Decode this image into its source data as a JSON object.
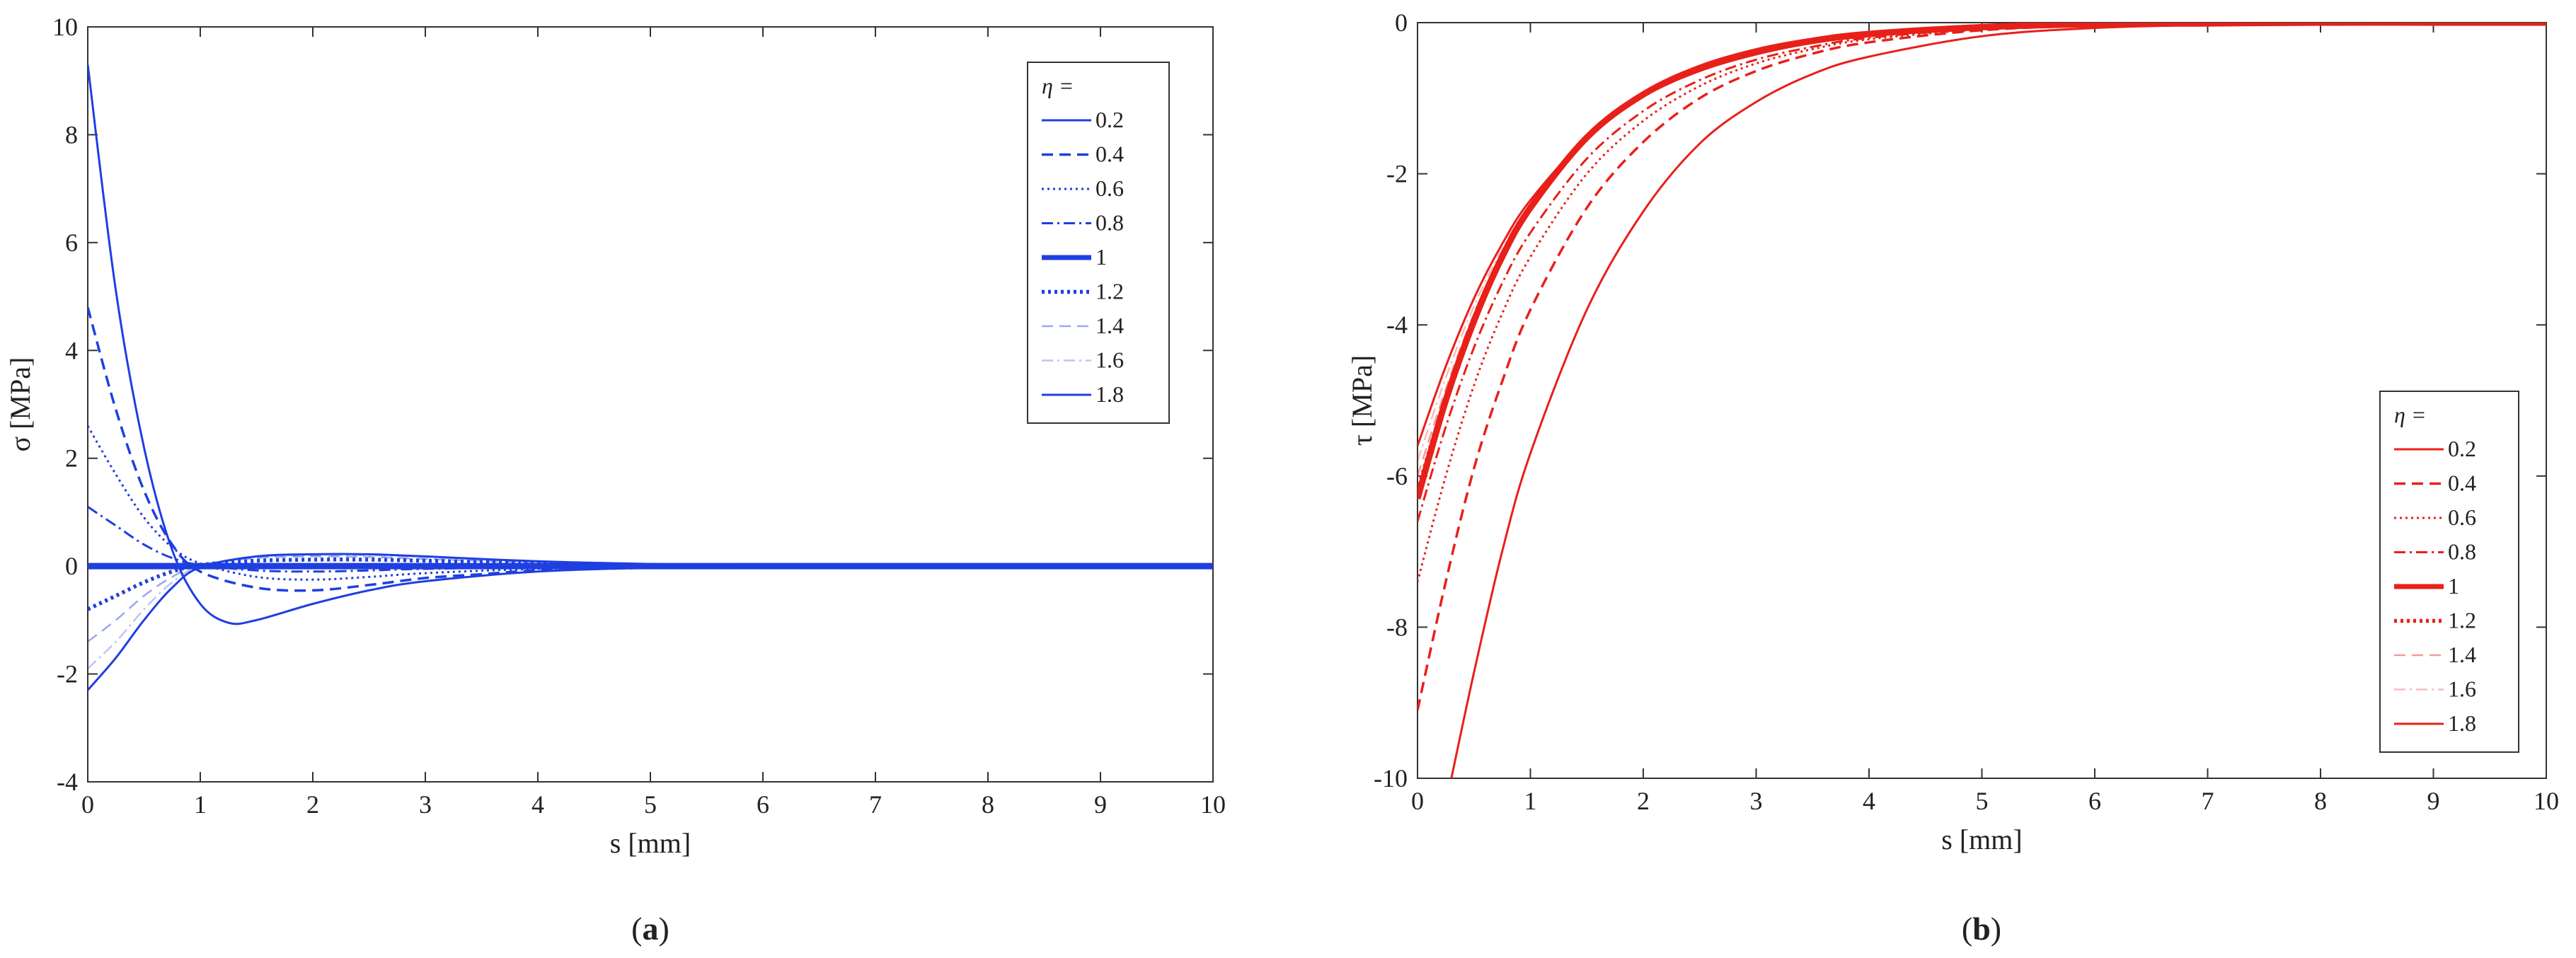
{
  "chart_data": [
    {
      "panel_label": "a",
      "type": "line",
      "xlabel": "s [mm]",
      "ylabel": "σ [MPa]",
      "xlim": [
        0,
        10
      ],
      "ylim": [
        -4,
        10
      ],
      "xticks": [
        "0",
        "1",
        "2",
        "3",
        "4",
        "5",
        "6",
        "7",
        "8",
        "9",
        "10"
      ],
      "yticks": [
        "-4",
        "-2",
        "0",
        "2",
        "4",
        "6",
        "8",
        "10"
      ],
      "grid": false,
      "legend_position": "top-right",
      "legend_title": "η =",
      "color": "#1f3fe0",
      "series": [
        {
          "name": "0.2",
          "x": [
            0,
            0.25,
            0.5,
            0.75,
            1,
            1.25,
            1.5,
            2,
            2.5,
            3,
            4,
            5,
            6,
            7,
            8,
            9,
            10
          ],
          "y": [
            9.3,
            5.1,
            2.2,
            0.3,
            -0.7,
            -1.05,
            -1.0,
            -0.7,
            -0.45,
            -0.28,
            -0.1,
            -0.03,
            0,
            0,
            0,
            0,
            0
          ]
        },
        {
          "name": "0.4",
          "x": [
            0,
            0.25,
            0.5,
            0.75,
            1,
            1.5,
            2,
            2.5,
            3,
            3.5,
            4,
            5,
            6,
            7,
            8,
            9,
            10
          ],
          "y": [
            4.8,
            2.9,
            1.4,
            0.4,
            -0.1,
            -0.4,
            -0.45,
            -0.35,
            -0.22,
            -0.15,
            -0.08,
            -0.03,
            0,
            0,
            0,
            0,
            0
          ]
        },
        {
          "name": "0.6",
          "x": [
            0,
            0.25,
            0.5,
            0.75,
            1,
            1.5,
            2,
            2.5,
            3,
            4,
            5,
            6,
            7,
            8,
            9,
            10
          ],
          "y": [
            2.6,
            1.7,
            0.9,
            0.35,
            0.05,
            -0.2,
            -0.25,
            -0.2,
            -0.13,
            -0.05,
            -0.02,
            0,
            0,
            0,
            0,
            0
          ]
        },
        {
          "name": "0.8",
          "x": [
            0,
            0.25,
            0.5,
            0.75,
            1,
            1.5,
            2,
            2.5,
            3,
            4,
            5,
            6,
            7,
            8,
            9,
            10
          ],
          "y": [
            1.1,
            0.75,
            0.4,
            0.15,
            0.02,
            -0.08,
            -0.1,
            -0.08,
            -0.05,
            -0.02,
            0,
            0,
            0,
            0,
            0,
            0
          ]
        },
        {
          "name": "1",
          "x": [
            0,
            1,
            2,
            3,
            4,
            5,
            6,
            7,
            8,
            9,
            10
          ],
          "y": [
            0,
            0,
            0,
            0,
            0,
            0,
            0,
            0,
            0,
            0,
            0
          ]
        },
        {
          "name": "1.2",
          "x": [
            0,
            0.25,
            0.5,
            0.75,
            1,
            1.5,
            2,
            2.5,
            3,
            4,
            5,
            6,
            7,
            8,
            9,
            10
          ],
          "y": [
            -0.8,
            -0.55,
            -0.3,
            -0.1,
            0.02,
            0.1,
            0.12,
            0.12,
            0.1,
            0.05,
            0.02,
            0,
            0,
            0,
            0,
            0
          ]
        },
        {
          "name": "1.4",
          "x": [
            0,
            0.25,
            0.5,
            0.75,
            1,
            1.5,
            2,
            2.5,
            3,
            4,
            5,
            6,
            7,
            8,
            9,
            10
          ],
          "y": [
            -1.4,
            -1.0,
            -0.55,
            -0.2,
            0.02,
            0.15,
            0.18,
            0.17,
            0.13,
            0.07,
            0.03,
            0,
            0,
            0,
            0,
            0
          ]
        },
        {
          "name": "1.6",
          "x": [
            0,
            0.25,
            0.5,
            0.75,
            1,
            1.5,
            2,
            2.5,
            3,
            4,
            5,
            6,
            7,
            8,
            9,
            10
          ],
          "y": [
            -1.9,
            -1.4,
            -0.8,
            -0.3,
            0.0,
            0.17,
            0.2,
            0.2,
            0.16,
            0.08,
            0.03,
            0,
            0,
            0,
            0,
            0
          ]
        },
        {
          "name": "1.8",
          "x": [
            0,
            0.25,
            0.5,
            0.75,
            1,
            1.5,
            2,
            2.5,
            3,
            4,
            5,
            6,
            7,
            8,
            9,
            10
          ],
          "y": [
            -2.3,
            -1.7,
            -1.0,
            -0.4,
            -0.02,
            0.18,
            0.22,
            0.22,
            0.18,
            0.09,
            0.04,
            0,
            0,
            0,
            0,
            0
          ]
        }
      ]
    },
    {
      "panel_label": "b",
      "type": "line",
      "xlabel": "s [mm]",
      "ylabel": "τ [MPa]",
      "xlim": [
        0,
        10
      ],
      "ylim": [
        -10,
        0
      ],
      "xticks": [
        "0",
        "1",
        "2",
        "3",
        "4",
        "5",
        "6",
        "7",
        "8",
        "9",
        "10"
      ],
      "yticks": [
        "-10",
        "-8",
        "-6",
        "-4",
        "-2",
        "0"
      ],
      "grid": false,
      "legend_position": "bottom-right",
      "legend_title": "η =",
      "color": "#e8201a",
      "series": [
        {
          "name": "0.2",
          "x": [
            0.3,
            0.5,
            0.75,
            1,
            1.5,
            2,
            2.5,
            3,
            3.5,
            4,
            5,
            6,
            7,
            8,
            9,
            10
          ],
          "y": [
            -10.0,
            -8.6,
            -7.0,
            -5.7,
            -3.8,
            -2.5,
            -1.6,
            -1.05,
            -0.68,
            -0.45,
            -0.18,
            -0.07,
            -0.03,
            -0.01,
            0,
            0
          ]
        },
        {
          "name": "0.4",
          "x": [
            0,
            0.25,
            0.5,
            0.75,
            1,
            1.5,
            2,
            2.5,
            3,
            3.5,
            4,
            5,
            6,
            7,
            8,
            9,
            10
          ],
          "y": [
            -9.1,
            -7.4,
            -5.9,
            -4.75,
            -3.8,
            -2.45,
            -1.58,
            -1.0,
            -0.64,
            -0.41,
            -0.26,
            -0.1,
            -0.04,
            -0.02,
            0,
            0,
            0
          ]
        },
        {
          "name": "0.6",
          "x": [
            0,
            0.25,
            0.5,
            0.75,
            1,
            1.5,
            2,
            2.5,
            3,
            3.5,
            4,
            5,
            6,
            7,
            8,
            9,
            10
          ],
          "y": [
            -7.4,
            -6.0,
            -4.8,
            -3.85,
            -3.1,
            -2.0,
            -1.3,
            -0.84,
            -0.54,
            -0.35,
            -0.22,
            -0.09,
            -0.04,
            -0.01,
            0,
            0,
            0
          ]
        },
        {
          "name": "0.8",
          "x": [
            0,
            0.25,
            0.5,
            0.75,
            1,
            1.5,
            2,
            2.5,
            3,
            3.5,
            4,
            5,
            6,
            7,
            8,
            9,
            10
          ],
          "y": [
            -6.6,
            -5.35,
            -4.3,
            -3.45,
            -2.78,
            -1.8,
            -1.17,
            -0.76,
            -0.49,
            -0.32,
            -0.2,
            -0.08,
            -0.03,
            -0.01,
            0,
            0,
            0
          ]
        },
        {
          "name": "1",
          "x": [
            0,
            0.25,
            0.5,
            0.75,
            1,
            1.5,
            2,
            2.5,
            3,
            3.5,
            4,
            5,
            6,
            7,
            8,
            9,
            10
          ],
          "y": [
            -6.3,
            -5.0,
            -3.95,
            -3.1,
            -2.45,
            -1.52,
            -0.95,
            -0.6,
            -0.38,
            -0.24,
            -0.15,
            -0.06,
            -0.02,
            -0.01,
            0,
            0,
            0
          ]
        },
        {
          "name": "1.2",
          "x": [
            0,
            0.25,
            0.5,
            0.75,
            1,
            1.5,
            2,
            2.5,
            3,
            3.5,
            4,
            5,
            6,
            7,
            8,
            9,
            10
          ],
          "y": [
            -6.2,
            -4.95,
            -3.9,
            -3.07,
            -2.42,
            -1.5,
            -0.94,
            -0.59,
            -0.37,
            -0.23,
            -0.14,
            -0.05,
            -0.02,
            -0.01,
            0,
            0,
            0
          ]
        },
        {
          "name": "1.4",
          "x": [
            0,
            0.25,
            0.5,
            0.75,
            1,
            1.5,
            2,
            2.5,
            3,
            3.5,
            4,
            5,
            6,
            7,
            8,
            9,
            10
          ],
          "y": [
            -6.0,
            -4.85,
            -3.85,
            -3.05,
            -2.42,
            -1.52,
            -0.96,
            -0.61,
            -0.39,
            -0.25,
            -0.16,
            -0.06,
            -0.02,
            -0.01,
            0,
            0,
            0
          ]
        },
        {
          "name": "1.6",
          "x": [
            0,
            0.25,
            0.5,
            0.75,
            1,
            1.5,
            2,
            2.5,
            3,
            3.5,
            4,
            5,
            6,
            7,
            8,
            9,
            10
          ],
          "y": [
            -5.8,
            -4.7,
            -3.75,
            -3.0,
            -2.4,
            -1.53,
            -0.98,
            -0.63,
            -0.41,
            -0.26,
            -0.17,
            -0.07,
            -0.03,
            -0.01,
            0,
            0,
            0
          ]
        },
        {
          "name": "1.8",
          "x": [
            0,
            0.25,
            0.5,
            0.75,
            1,
            1.5,
            2,
            2.5,
            3,
            3.5,
            4,
            5,
            6,
            7,
            8,
            9,
            10
          ],
          "y": [
            -5.6,
            -4.55,
            -3.65,
            -2.93,
            -2.35,
            -1.52,
            -0.98,
            -0.64,
            -0.42,
            -0.27,
            -0.18,
            -0.07,
            -0.03,
            -0.01,
            0,
            0,
            0
          ]
        }
      ]
    }
  ]
}
